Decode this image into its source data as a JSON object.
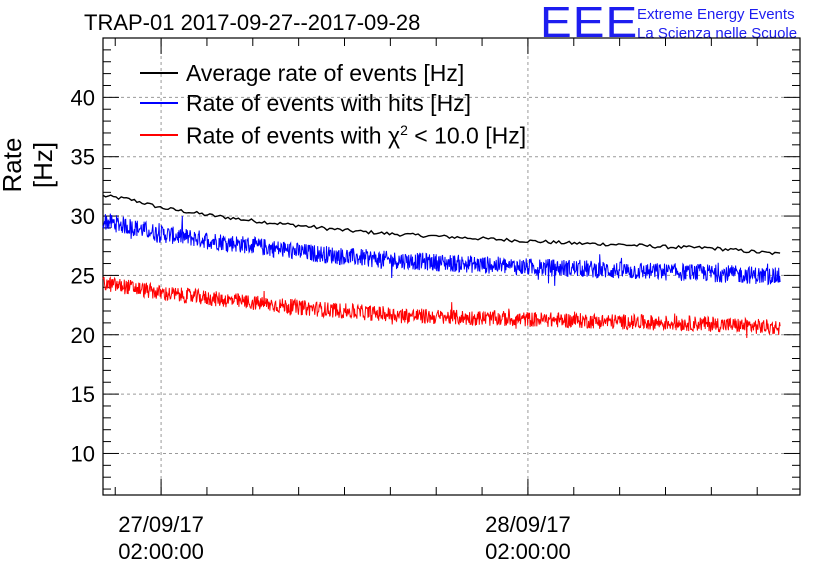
{
  "chart_data": {
    "type": "line",
    "title": "TRAP-01 2017-09-27--2017-09-28",
    "xlabel": "",
    "ylabel": "Rate [Hz]",
    "ylim": [
      6.5,
      45
    ],
    "yticks": [
      10,
      15,
      20,
      25,
      30,
      35,
      40
    ],
    "xlim_hours": [
      -3.8,
      41.8
    ],
    "x_tick_labels": [
      {
        "hour": 0,
        "date": "27/09/17",
        "time": "02:00:00"
      },
      {
        "hour": 24,
        "date": "28/09/17",
        "time": "02:00:00"
      }
    ],
    "grid": true,
    "legend": "top-left",
    "series": [
      {
        "name": "Average rate of events [Hz]",
        "color": "#000000",
        "x": [
          -3.8,
          -2,
          0,
          3,
          6,
          9,
          12,
          15,
          18,
          21,
          24,
          27,
          30,
          33,
          36,
          40.5
        ],
        "y": [
          31.7,
          31.4,
          30.7,
          30.1,
          29.6,
          29.2,
          28.8,
          28.5,
          28.3,
          28.1,
          27.9,
          27.7,
          27.6,
          27.4,
          27.3,
          26.8
        ],
        "noise": 0.15
      },
      {
        "name": "Rate of events with hits [Hz]",
        "color": "#0000ff",
        "x": [
          -3.8,
          -2,
          0,
          3,
          6,
          9,
          12,
          15,
          18,
          21,
          24,
          27,
          30,
          33,
          36,
          40.5
        ],
        "y": [
          29.6,
          29.1,
          28.5,
          28.0,
          27.5,
          27.0,
          26.6,
          26.3,
          26.1,
          25.9,
          25.7,
          25.6,
          25.4,
          25.3,
          25.2,
          24.9
        ],
        "noise": 0.75
      },
      {
        "name": "Rate of events with χ² < 10.0 [Hz]",
        "color": "#ff0000",
        "x": [
          -3.8,
          -2,
          0,
          3,
          6,
          9,
          12,
          15,
          18,
          21,
          24,
          27,
          30,
          33,
          36,
          40.5
        ],
        "y": [
          24.3,
          24.0,
          23.5,
          23.1,
          22.7,
          22.3,
          22.0,
          21.7,
          21.5,
          21.4,
          21.3,
          21.2,
          21.1,
          21.0,
          20.9,
          20.6
        ],
        "noise": 0.65
      }
    ]
  },
  "legend_labels": {
    "avg": "Average rate of events [Hz]",
    "hits": "Rate of events with hits [Hz]",
    "chi_prefix": "Rate of events with χ",
    "chi_sup": "2",
    "chi_suffix": " < 10.0 [Hz]"
  },
  "logo": {
    "letters": "EEE",
    "line1": "Extreme Energy Events",
    "line2": "La Scienza nelle Scuole"
  }
}
